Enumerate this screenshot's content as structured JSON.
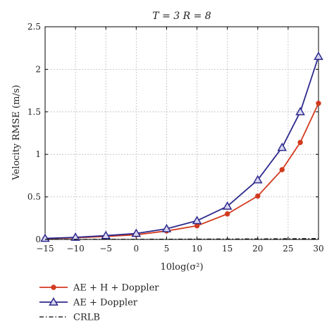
{
  "chart_data": {
    "type": "line",
    "title": "T = 3 R = 8",
    "xlabel": "10log(σ²)",
    "ylabel": "Velocity RMSE (m/s)",
    "xlim": [
      -15,
      30
    ],
    "ylim": [
      0,
      2.5
    ],
    "xticks": [
      -15,
      -10,
      -5,
      0,
      5,
      10,
      15,
      20,
      25,
      30
    ],
    "xtick_labels": [
      "−15",
      "−10",
      "−5",
      "0",
      "5",
      "10",
      "15",
      "20",
      "25",
      "30"
    ],
    "yticks": [
      0,
      0.5,
      1,
      1.5,
      2,
      2.5
    ],
    "ytick_labels": [
      "0",
      "0.5",
      "1",
      "1.5",
      "2",
      "2.5"
    ],
    "grid": true,
    "legend_position": "bottom-outside",
    "series": [
      {
        "name": "AE + H + Doppler",
        "color": "#d23a1e",
        "marker": "circle",
        "dash": "solid",
        "x": [
          -15,
          -10,
          -5,
          0,
          5,
          10,
          15,
          20,
          24,
          27,
          30
        ],
        "y": [
          0.01,
          0.02,
          0.035,
          0.055,
          0.1,
          0.16,
          0.3,
          0.51,
          0.82,
          1.14,
          1.6
        ]
      },
      {
        "name": "AE + Doppler",
        "color": "#2e2a8c",
        "marker": "triangle",
        "dash": "solid",
        "x": [
          -15,
          -10,
          -5,
          0,
          5,
          10,
          15,
          20,
          24,
          27,
          30
        ],
        "y": [
          0.012,
          0.025,
          0.045,
          0.07,
          0.125,
          0.22,
          0.39,
          0.7,
          1.08,
          1.5,
          2.15
        ]
      },
      {
        "name": "CRLB",
        "color": "#000000",
        "marker": "none",
        "dash": "dashdot",
        "x": [
          -15,
          -10,
          -5,
          0,
          5,
          10,
          15,
          20,
          25,
          30
        ],
        "y": [
          0.001,
          0.001,
          0.002,
          0.002,
          0.003,
          0.004,
          0.005,
          0.006,
          0.008,
          0.01
        ]
      }
    ]
  }
}
